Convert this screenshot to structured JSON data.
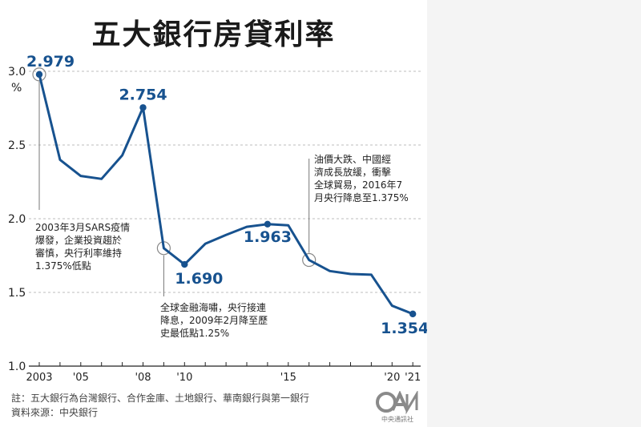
{
  "title": "五大銀行房貸利率",
  "chart_data": {
    "type": "line",
    "unit": "%",
    "color": "#17528f",
    "x": [
      2003,
      2004,
      2005,
      2006,
      2007,
      2008,
      2009,
      2010,
      2011,
      2012,
      2013,
      2014,
      2015,
      2016,
      2017,
      2018,
      2019,
      2020,
      2021
    ],
    "values": [
      2.979,
      2.4,
      2.29,
      2.27,
      2.43,
      2.754,
      1.8,
      1.69,
      1.83,
      1.89,
      1.945,
      1.963,
      1.955,
      1.72,
      1.645,
      1.625,
      1.62,
      1.41,
      1.354
    ],
    "ylim": [
      1.0,
      3.0
    ],
    "yticks": [
      "3.0",
      "2.5",
      "2.0",
      "1.5",
      "1.0"
    ],
    "xticks": [
      {
        "x": 2003,
        "label": "2003"
      },
      {
        "x": 2005,
        "label": "'05"
      },
      {
        "x": 2008,
        "label": "'08"
      },
      {
        "x": 2010,
        "label": "'10"
      },
      {
        "x": 2015,
        "label": "'15"
      },
      {
        "x": 2020,
        "label": "'20"
      },
      {
        "x": 2021,
        "label": "'21"
      }
    ],
    "value_labels": [
      {
        "x": 2003,
        "y": 2.979,
        "label": "2.979"
      },
      {
        "x": 2008,
        "y": 2.754,
        "label": "2.754"
      },
      {
        "x": 2010,
        "y": 1.69,
        "label": "1.690"
      },
      {
        "x": 2014,
        "y": 1.963,
        "label": "1.963"
      },
      {
        "x": 2021,
        "y": 1.354,
        "label": "1.354"
      }
    ],
    "annotations": [
      {
        "x": 2003,
        "y": 2.979,
        "lines": [
          "2003年3月SARS疫情",
          "爆發，企業投資趨於",
          "審慎，央行利率維持",
          "1.375%低點"
        ]
      },
      {
        "x": 2009,
        "y": 1.8,
        "lines": [
          "全球金融海嘯，央行接連",
          "降息，2009年2月降至歷",
          "史最低點1.25%"
        ]
      },
      {
        "x": 2016,
        "y": 1.72,
        "lines": [
          "油價大跌、中國經",
          "濟成長放緩，衝擊",
          "全球貿易，2016年7",
          "月央行降息至1.375%"
        ]
      }
    ]
  },
  "footnotes": {
    "note": "註：五大銀行為台灣銀行、合作金庫、土地銀行、華南銀行與第一銀行",
    "source": "資料來源：中央銀行"
  },
  "logo": {
    "text": "中央通訊社",
    "mark": "CNA"
  }
}
